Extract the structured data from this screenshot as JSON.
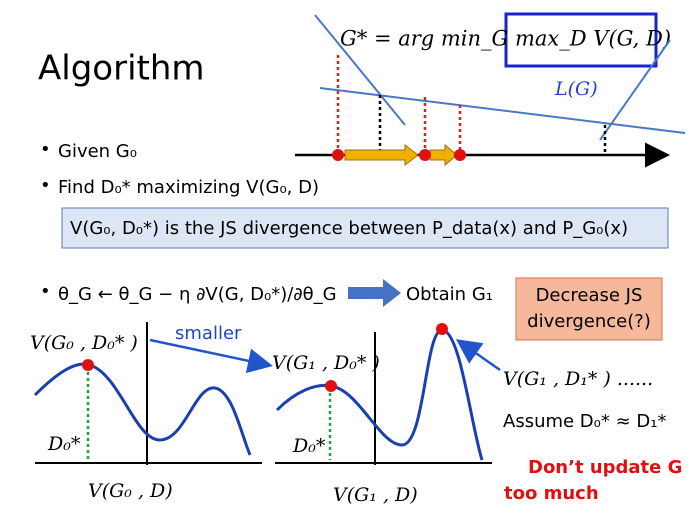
{
  "title": "Algorithm",
  "formula": "G* = arg min_G max_D V(G, D)",
  "lg_label": "L(G)",
  "bullets": [
    "Given G₀",
    "Find D₀* maximizing V(G₀, D)",
    "θ_G ← θ_G − η ∂V(G, D₀*)/∂θ_G"
  ],
  "js_box": "V(G₀, D₀*) is the JS divergence between P_data(x) and P_G₀(x)",
  "obtain": "Obtain G₁",
  "decrease_box": [
    "Decrease JS",
    "divergence(?)"
  ],
  "smaller": "smaller",
  "left_plot": {
    "peak_label": "V(G₀ , D₀* )",
    "d_label": "D₀*",
    "x_label": "V(G₀ , D)"
  },
  "right_plot": {
    "peak_label": "V(G₁ , D₀* )",
    "d_label": "D₀*",
    "x_label": "V(G₁ , D)"
  },
  "notes": {
    "new_max": "V(G₁ , D₁* )  ......",
    "assume": "Assume D₀* ≈ D₁*"
  },
  "warning": [
    "Don’t update G",
    "too much"
  ]
}
